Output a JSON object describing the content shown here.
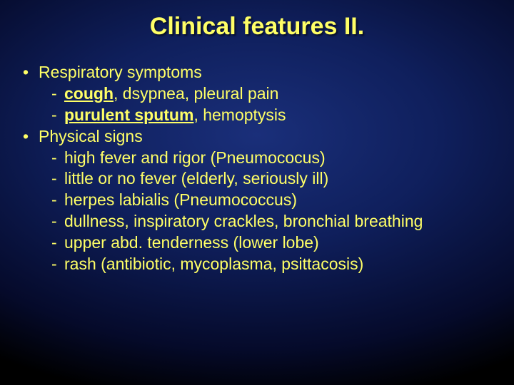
{
  "colors": {
    "text": "#ffff66",
    "title": "#ffff66",
    "bg_center": "#1a2f7a",
    "bg_edge": "#000000"
  },
  "typography": {
    "title_fontsize_pt": 26,
    "body_fontsize_pt": 17,
    "font_family": "Arial"
  },
  "title": "Clinical features II.",
  "bullets": [
    {
      "label": "Respiratory symptoms",
      "subs": [
        {
          "parts": [
            {
              "t": "cough",
              "bold": true,
              "u": true
            },
            {
              "t": ", dsypnea, pleural pain"
            }
          ]
        },
        {
          "parts": [
            {
              "t": "purulent sputum",
              "bold": true,
              "u": true
            },
            {
              "t": ", hemoptysis"
            }
          ]
        }
      ]
    },
    {
      "label": "Physical signs",
      "subs": [
        {
          "parts": [
            {
              "t": "high fever and rigor (Pneumococus)"
            }
          ]
        },
        {
          "parts": [
            {
              "t": "little or no fever (elderly, seriously ill)"
            }
          ]
        },
        {
          "parts": [
            {
              "t": "herpes labialis (Pneumococcus)"
            }
          ]
        },
        {
          "parts": [
            {
              "t": "dullness, inspiratory crackles, bronchial breathing"
            }
          ]
        },
        {
          "parts": [
            {
              "t": "upper abd. tenderness (lower lobe)"
            }
          ]
        },
        {
          "parts": [
            {
              "t": "rash (antibiotic, mycoplasma, psittacosis)"
            }
          ]
        }
      ]
    }
  ]
}
